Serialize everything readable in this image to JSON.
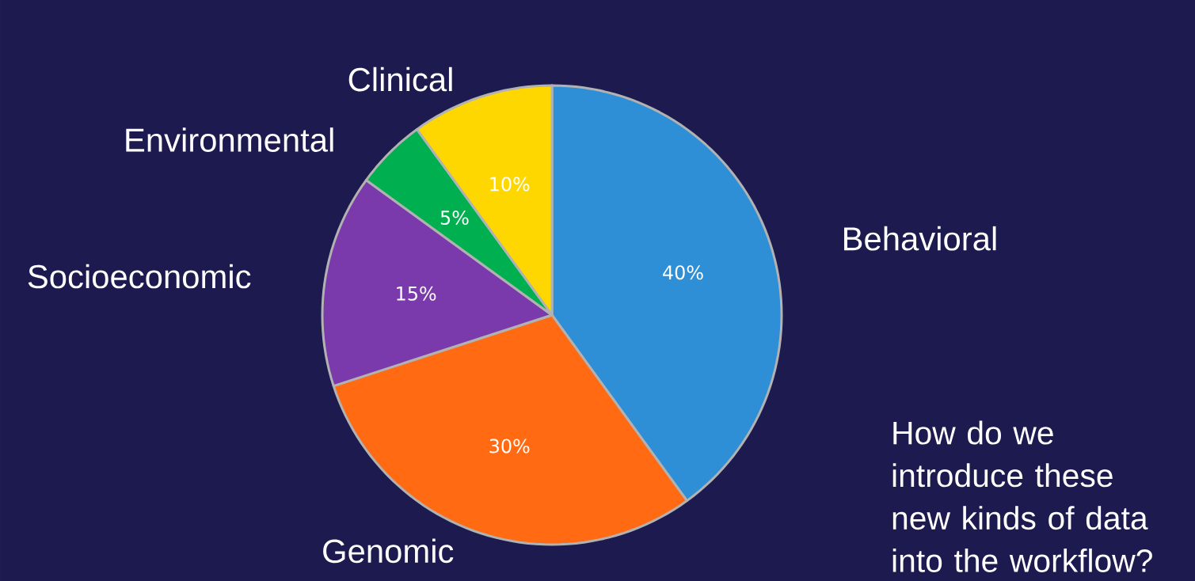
{
  "chart_data": {
    "type": "pie",
    "categories": [
      "Behavioral",
      "Genomic",
      "Socioeconomic",
      "Environmental",
      "Clinical"
    ],
    "values": [
      40,
      30,
      15,
      5,
      10
    ],
    "colors": [
      "#2e8fd6",
      "#ff6a13",
      "#7b3aab",
      "#00b050",
      "#ffd700"
    ],
    "value_labels": [
      "40%",
      "30%",
      "15%",
      "5%",
      "10%"
    ],
    "annotations": [
      "How do we introduce these new kinds of data into the workflow?"
    ]
  }
}
